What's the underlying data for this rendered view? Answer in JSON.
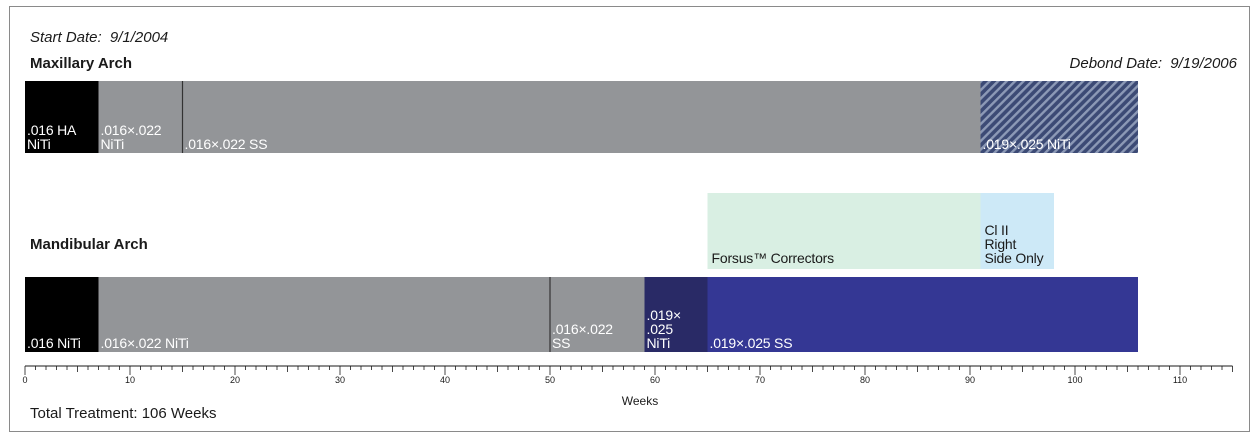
{
  "chart_data": {
    "type": "bar",
    "orientation": "horizontal-timeline",
    "start_date_label": "Start Date:",
    "start_date": "9/1/2004",
    "debond_date_label": "Debond Date:",
    "debond_date": "9/19/2006",
    "total_treatment": "Total Treatment: 106 Weeks",
    "xlabel": "Weeks",
    "xlim": [
      0,
      115
    ],
    "major_ticks": [
      0,
      10,
      20,
      30,
      40,
      50,
      60,
      70,
      80,
      90,
      100,
      110
    ],
    "minor_tick_step": 1,
    "mid_tick_step": 5,
    "tracks": [
      {
        "name": "Maxillary Arch",
        "segments": [
          {
            "start": 0,
            "end": 7,
            "label": [
              ".016 HA",
              "NiTi"
            ],
            "color": "#000000",
            "text_color": "#ffffff"
          },
          {
            "start": 7,
            "end": 15,
            "label": [
              ".016×.022",
              "NiTi"
            ],
            "color": "#939598",
            "text_color": "#ffffff"
          },
          {
            "start": 15,
            "end": 91,
            "label": [
              ".016×.022 SS"
            ],
            "color": "#939598",
            "text_color": "#ffffff"
          },
          {
            "start": 91,
            "end": 106,
            "label": [
              ".019×.025 NiTi"
            ],
            "color": "#3c4a75",
            "hatched": true,
            "text_color": "#ffffff"
          }
        ]
      },
      {
        "name": "Mandibular Arch",
        "segments": [
          {
            "start": 0,
            "end": 7,
            "label": [
              ".016 NiTi"
            ],
            "color": "#000000",
            "text_color": "#ffffff"
          },
          {
            "start": 7,
            "end": 50,
            "label": [
              ".016×.022 NiTi"
            ],
            "color": "#939598",
            "text_color": "#ffffff"
          },
          {
            "start": 50,
            "end": 59,
            "label": [
              ".016×.022",
              "SS"
            ],
            "color": "#939598",
            "text_color": "#ffffff"
          },
          {
            "start": 59,
            "end": 65,
            "label": [
              ".019×",
              ".025",
              "NiTi"
            ],
            "color": "#292a66",
            "text_color": "#ffffff"
          },
          {
            "start": 65,
            "end": 106,
            "label": [
              ".019×.025 SS"
            ],
            "color": "#343794",
            "text_color": "#ffffff"
          }
        ]
      }
    ],
    "appliances": [
      {
        "start": 65,
        "end": 91,
        "label": [
          "Forsus™ Correctors"
        ],
        "color": "#d9efe3",
        "text_color": "#1a1a1a"
      },
      {
        "start": 91,
        "end": 98,
        "label": [
          "Cl II",
          "Right",
          "Side Only"
        ],
        "color": "#cde9f7",
        "text_color": "#1a1a1a"
      }
    ]
  }
}
